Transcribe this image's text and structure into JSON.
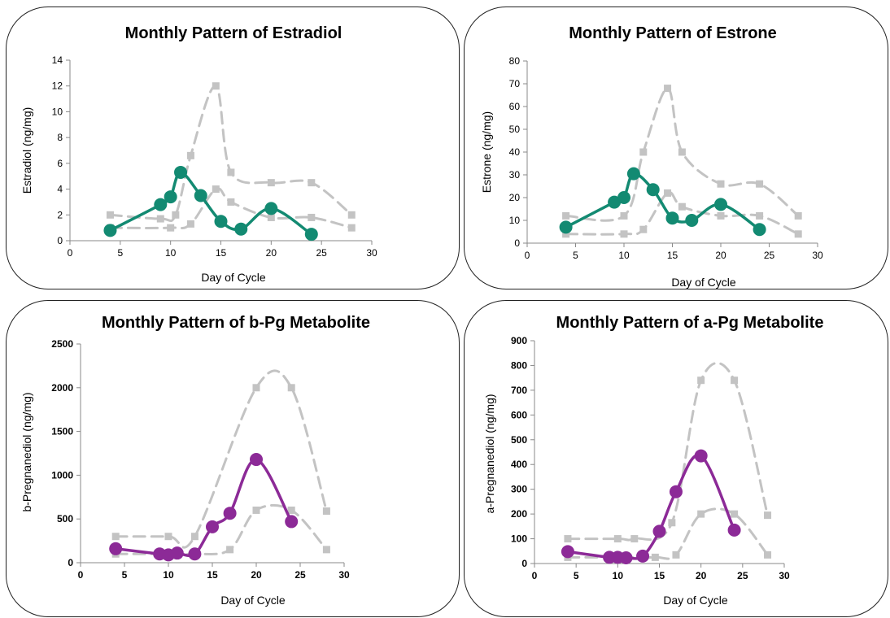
{
  "colors": {
    "estrogen_series": "#138a72",
    "progesterone_series": "#8c2a97",
    "range_series": "#c3c3c3",
    "axis": "#8a8a8a"
  },
  "chart_data": [
    {
      "type": "line",
      "title": "Monthly Pattern of Estradiol",
      "xlabel": "Day of Cycle",
      "ylabel": "Estradiol (ng/mg)",
      "xlim": [
        0,
        30
      ],
      "ylim": [
        0,
        14
      ],
      "xticks": [
        0,
        5,
        10,
        15,
        20,
        25,
        30
      ],
      "yticks": [
        0,
        2,
        4,
        6,
        8,
        10,
        12,
        14
      ],
      "grid": false,
      "legend": "none",
      "series": [
        {
          "role": "range-upper",
          "style": "dashed-gray-square",
          "x": [
            4,
            9,
            10.5,
            12,
            14.5,
            16,
            20,
            24,
            28
          ],
          "y": [
            2,
            1.7,
            2,
            6.6,
            12,
            5.3,
            4.5,
            4.5,
            2
          ]
        },
        {
          "role": "range-lower",
          "style": "dashed-gray-square",
          "x": [
            4,
            10,
            12,
            14.5,
            16,
            20,
            24,
            28
          ],
          "y": [
            1,
            1,
            1.3,
            4,
            3,
            1.8,
            1.8,
            1
          ]
        },
        {
          "role": "measured",
          "style": "solid-circle",
          "x": [
            4,
            9,
            10,
            11,
            13,
            15,
            17,
            20,
            24
          ],
          "y": [
            0.8,
            2.8,
            3.4,
            5.3,
            3.5,
            1.5,
            0.9,
            2.5,
            0.5
          ]
        }
      ]
    },
    {
      "type": "line",
      "title": "Monthly Pattern of Estrone",
      "xlabel": "Day of Cycle",
      "ylabel": "Estrone (ng/mg)",
      "xlim": [
        0,
        30
      ],
      "ylim": [
        0,
        80
      ],
      "xticks": [
        0,
        5,
        10,
        15,
        20,
        25,
        30
      ],
      "yticks": [
        0,
        10,
        20,
        30,
        40,
        50,
        60,
        70,
        80
      ],
      "grid": false,
      "legend": "none",
      "series": [
        {
          "role": "range-upper",
          "style": "dashed-gray-square",
          "x": [
            4,
            10,
            12,
            14.5,
            16,
            20,
            24,
            28
          ],
          "y": [
            12,
            12,
            40,
            68,
            40,
            26,
            26,
            12
          ]
        },
        {
          "role": "range-lower",
          "style": "dashed-gray-square",
          "x": [
            4,
            10,
            12,
            14.5,
            16,
            20,
            24,
            28
          ],
          "y": [
            4,
            4,
            6,
            22,
            16,
            12,
            12,
            4
          ]
        },
        {
          "role": "measured",
          "style": "solid-circle",
          "x": [
            4,
            9,
            10,
            11,
            13,
            15,
            17,
            20,
            24
          ],
          "y": [
            7,
            18,
            20,
            30.5,
            23.5,
            11,
            10,
            17,
            6
          ]
        }
      ]
    },
    {
      "type": "line",
      "title": "Monthly Pattern of b-Pg Metabolite",
      "xlabel": "Day of Cycle",
      "ylabel": "b-Pregnanediol (ng/mg)",
      "xlim": [
        0,
        30
      ],
      "ylim": [
        0,
        2500
      ],
      "xticks": [
        0,
        5,
        10,
        15,
        20,
        25,
        30
      ],
      "yticks": [
        0,
        500,
        1000,
        1500,
        2000,
        2500
      ],
      "grid": false,
      "legend": "none",
      "series": [
        {
          "role": "range-upper",
          "style": "dashed-gray-square",
          "x": [
            4,
            10,
            13,
            20,
            24,
            28
          ],
          "y": [
            300,
            300,
            300,
            2000,
            2000,
            590
          ]
        },
        {
          "role": "range-lower",
          "style": "dashed-gray-square",
          "x": [
            4,
            10,
            13,
            17,
            20,
            24,
            28
          ],
          "y": [
            100,
            100,
            100,
            150,
            600,
            600,
            150
          ]
        },
        {
          "role": "measured",
          "style": "solid-circle",
          "x": [
            4,
            9,
            10,
            11,
            13,
            15,
            17,
            20,
            24
          ],
          "y": [
            160,
            100,
            90,
            110,
            100,
            410,
            565,
            1180,
            470
          ]
        }
      ]
    },
    {
      "type": "line",
      "title": "Monthly Pattern of a-Pg Metabolite",
      "xlabel": "Day of Cycle",
      "ylabel": "a-Pregnanediol (ng/mg)",
      "xlim": [
        0,
        30
      ],
      "ylim": [
        0,
        900
      ],
      "xticks": [
        0,
        5,
        10,
        15,
        20,
        25,
        30
      ],
      "yticks": [
        0,
        100,
        200,
        300,
        400,
        500,
        600,
        700,
        800,
        900
      ],
      "grid": false,
      "legend": "none",
      "series": [
        {
          "role": "range-upper",
          "style": "dashed-gray-square",
          "x": [
            4,
            10,
            12,
            16.5,
            20,
            24,
            28
          ],
          "y": [
            100,
            100,
            100,
            165,
            740,
            740,
            195
          ]
        },
        {
          "role": "range-lower",
          "style": "dashed-gray-square",
          "x": [
            4,
            10,
            14.5,
            17,
            20,
            24,
            28
          ],
          "y": [
            25,
            25,
            25,
            35,
            200,
            200,
            35
          ]
        },
        {
          "role": "measured",
          "style": "solid-circle",
          "x": [
            4,
            9,
            10,
            11,
            13,
            15,
            17,
            20,
            24
          ],
          "y": [
            48,
            25,
            25,
            23,
            30,
            130,
            290,
            435,
            135
          ]
        }
      ]
    }
  ]
}
